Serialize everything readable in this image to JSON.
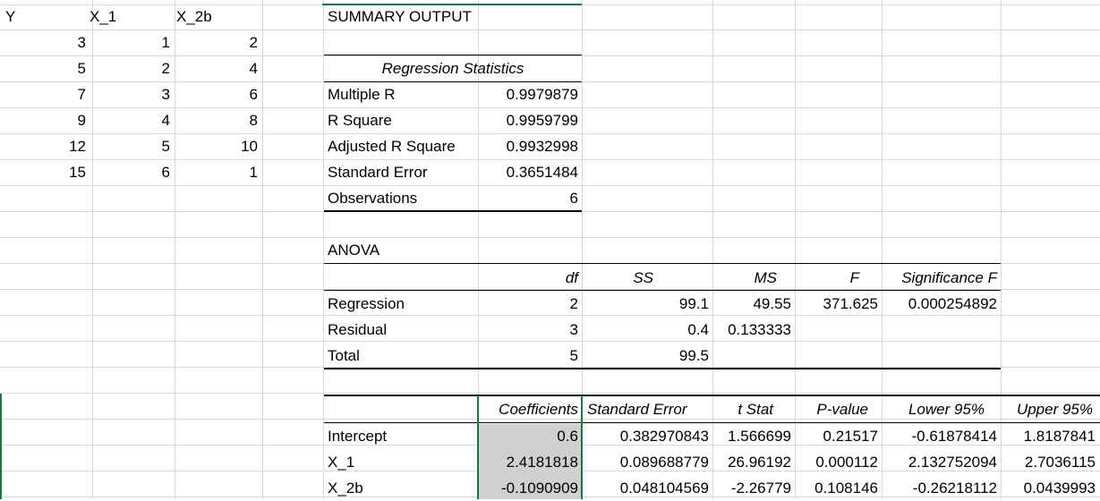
{
  "data_table": {
    "headers": [
      "Y",
      "X_1",
      "X_2b"
    ],
    "rows": [
      [
        "3",
        "1",
        "2"
      ],
      [
        "5",
        "2",
        "4"
      ],
      [
        "7",
        "3",
        "6"
      ],
      [
        "9",
        "4",
        "8"
      ],
      [
        "12",
        "5",
        "10"
      ],
      [
        "15",
        "6",
        "1"
      ]
    ]
  },
  "summary": {
    "title": "SUMMARY OUTPUT",
    "regression_statistics": {
      "header": "Regression Statistics",
      "rows": [
        {
          "label": "Multiple R",
          "value": "0.9979879"
        },
        {
          "label": "R Square",
          "value": "0.9959799"
        },
        {
          "label": "Adjusted R Square",
          "value": "0.9932998"
        },
        {
          "label": "Standard Error",
          "value": "0.3651484"
        },
        {
          "label": "Observations",
          "value": "6"
        }
      ]
    },
    "anova": {
      "title": "ANOVA",
      "headers": [
        "df",
        "SS",
        "MS",
        "F",
        "Significance F"
      ],
      "rows": [
        {
          "label": "Regression",
          "df": "2",
          "ss": "99.1",
          "ms": "49.55",
          "f": "371.625",
          "sig": "0.000254892"
        },
        {
          "label": "Residual",
          "df": "3",
          "ss": "0.4",
          "ms": "0.133333",
          "f": "",
          "sig": ""
        },
        {
          "label": "Total",
          "df": "5",
          "ss": "99.5",
          "ms": "",
          "f": "",
          "sig": ""
        }
      ]
    },
    "coefficients": {
      "headers": [
        "Coefficients",
        "Standard Error",
        "t Stat",
        "P-value",
        "Lower 95%",
        "Upper 95%"
      ],
      "rows": [
        {
          "label": "Intercept",
          "coef": "0.6",
          "se": "0.382970843",
          "t": "1.566699",
          "p": "0.21517",
          "lower": "-0.61878414",
          "upper": "1.8187841"
        },
        {
          "label": "X_1",
          "coef": "2.4181818",
          "se": "0.089688779",
          "t": "26.96192",
          "p": "0.000112",
          "lower": "2.132752094",
          "upper": "2.7036115"
        },
        {
          "label": "X_2b",
          "coef": "-0.1090909",
          "se": "0.048104569",
          "t": "-2.26779",
          "p": "0.108146",
          "lower": "-0.26218112",
          "upper": "0.0439993"
        }
      ]
    }
  },
  "colors": {
    "selection": "#217346",
    "highlight": "#d0d0d0",
    "gridline": "#dadada"
  }
}
